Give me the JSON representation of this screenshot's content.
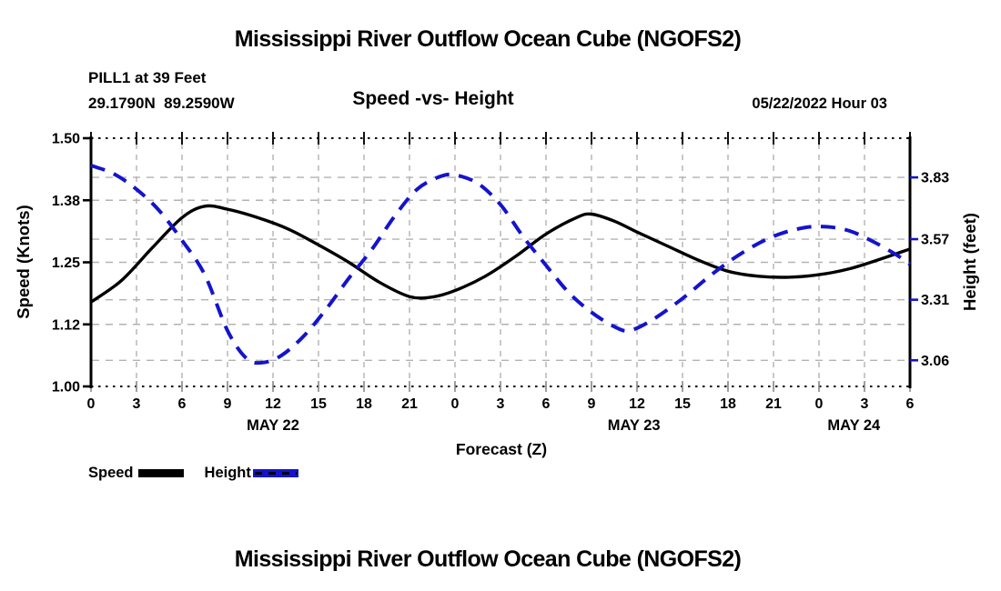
{
  "titles": {
    "top": "Mississippi River Outflow Ocean Cube (NGOFS2)",
    "bottom": "Mississippi River Outflow Ocean Cube (NGOFS2)"
  },
  "header": {
    "station": "PILL1 at 39 Feet",
    "coordinates": "29.1790N  89.2590W",
    "plot_title": "Speed -vs- Height",
    "forecast_time": "05/22/2022 Hour 03"
  },
  "legend": {
    "speed_label": "Speed",
    "height_label": "Height"
  },
  "colors": {
    "speed_line": "#000000",
    "height_line": "#1414cc",
    "grid": "#b2b2b2",
    "axis": "#000000",
    "bottom_tick": "#8a8a8a"
  },
  "chart_data": {
    "type": "line",
    "title": "Speed -vs- Height",
    "xlabel": "Forecast (Z)",
    "x_unit": "hours",
    "x_range": [
      0,
      54
    ],
    "x_ticks": {
      "hours": [
        0,
        3,
        6,
        9,
        12,
        15,
        18,
        21,
        24,
        27,
        30,
        33,
        36,
        39,
        42,
        45,
        48,
        51,
        54
      ],
      "labels": [
        "0",
        "3",
        "6",
        "9",
        "12",
        "15",
        "18",
        "21",
        "0",
        "3",
        "6",
        "9",
        "12",
        "15",
        "18",
        "21",
        "0",
        "3",
        "6"
      ]
    },
    "x_date_labels": [
      {
        "label": "MAY 22",
        "hour": 12
      },
      {
        "label": "MAY 23",
        "hour": 35.8
      },
      {
        "label": "MAY 24",
        "hour": 50.3
      }
    ],
    "left_axis": {
      "label": "Speed (Knots)",
      "range": [
        1.0,
        1.5
      ],
      "tick_values": [
        1.0,
        1.125,
        1.25,
        1.375,
        1.5
      ],
      "tick_labels": [
        "1.00",
        "1.12",
        "1.25",
        "1.38",
        "1.50"
      ]
    },
    "right_axis": {
      "label": "Height (feet)",
      "range": [
        2.95,
        3.995
      ],
      "tick_values": [
        3.06,
        3.315,
        3.57,
        3.83
      ],
      "tick_labels": [
        "3.06",
        "3.31",
        "3.57",
        "3.83"
      ]
    },
    "grid": {
      "vertical_every_hours": 3,
      "horizontal_left_values": [
        1.125,
        1.25,
        1.375
      ],
      "horizontal_right_values": [
        3.06,
        3.315,
        3.57,
        3.83
      ]
    },
    "series": [
      {
        "name": "Speed",
        "axis": "left",
        "line_style": "solid",
        "color": "#000000",
        "points": [
          [
            0,
            1.17
          ],
          [
            2,
            1.213
          ],
          [
            4,
            1.278
          ],
          [
            6,
            1.34
          ],
          [
            7.5,
            1.363
          ],
          [
            9,
            1.357
          ],
          [
            11,
            1.34
          ],
          [
            13,
            1.317
          ],
          [
            15,
            1.285
          ],
          [
            17,
            1.25
          ],
          [
            19,
            1.21
          ],
          [
            21,
            1.181
          ],
          [
            22.5,
            1.18
          ],
          [
            24,
            1.193
          ],
          [
            26,
            1.222
          ],
          [
            28,
            1.262
          ],
          [
            30,
            1.307
          ],
          [
            32,
            1.34
          ],
          [
            33,
            1.347
          ],
          [
            34.5,
            1.333
          ],
          [
            36,
            1.311
          ],
          [
            38,
            1.283
          ],
          [
            40,
            1.255
          ],
          [
            42,
            1.232
          ],
          [
            44,
            1.222
          ],
          [
            46,
            1.22
          ],
          [
            48,
            1.225
          ],
          [
            50,
            1.237
          ],
          [
            52,
            1.256
          ],
          [
            54,
            1.277
          ]
        ]
      },
      {
        "name": "Height",
        "axis": "right",
        "line_style": "dashed",
        "color": "#1414cc",
        "points": [
          [
            0,
            3.88
          ],
          [
            1.5,
            3.845
          ],
          [
            3,
            3.78
          ],
          [
            4.5,
            3.69
          ],
          [
            6,
            3.565
          ],
          [
            7.5,
            3.42
          ],
          [
            9,
            3.185
          ],
          [
            10.25,
            3.068
          ],
          [
            11.25,
            3.05
          ],
          [
            12.5,
            3.078
          ],
          [
            14,
            3.16
          ],
          [
            15.5,
            3.275
          ],
          [
            17,
            3.405
          ],
          [
            18.5,
            3.525
          ],
          [
            20,
            3.665
          ],
          [
            21.5,
            3.78
          ],
          [
            23,
            3.833
          ],
          [
            24,
            3.84
          ],
          [
            25.5,
            3.805
          ],
          [
            27,
            3.715
          ],
          [
            28.5,
            3.58
          ],
          [
            30,
            3.46
          ],
          [
            31.5,
            3.345
          ],
          [
            33,
            3.262
          ],
          [
            34.5,
            3.202
          ],
          [
            35.5,
            3.185
          ],
          [
            37,
            3.23
          ],
          [
            39,
            3.32
          ],
          [
            41,
            3.425
          ],
          [
            43,
            3.515
          ],
          [
            45,
            3.582
          ],
          [
            47,
            3.618
          ],
          [
            48.5,
            3.622
          ],
          [
            50,
            3.605
          ],
          [
            51.5,
            3.562
          ],
          [
            53,
            3.508
          ],
          [
            54,
            3.465
          ]
        ]
      }
    ]
  }
}
